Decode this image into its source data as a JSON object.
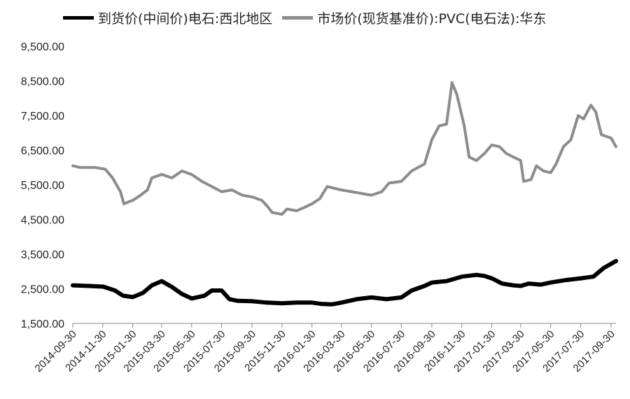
{
  "chart_data": {
    "type": "line",
    "title": "",
    "xlabel": "",
    "ylabel": "",
    "ylim": [
      1500,
      9500
    ],
    "grid": false,
    "legend_position": "top",
    "y_ticks": [
      "1,500.00",
      "2,500.00",
      "3,500.00",
      "4,500.00",
      "5,500.00",
      "6,500.00",
      "7,500.00",
      "8,500.00",
      "9,500.00"
    ],
    "x_ticks": [
      "2014-09-30",
      "2014-11-30",
      "2015-01-30",
      "2015-03-30",
      "2015-05-30",
      "2015-07-30",
      "2015-09-30",
      "2015-11-30",
      "2016-01-30",
      "2016-03-30",
      "2016-05-30",
      "2016-07-30",
      "2016-09-30",
      "2016-11-30",
      "2017-01-30",
      "2017-03-30",
      "2017-05-30",
      "2017-07-30",
      "2017-09-30"
    ],
    "series": [
      {
        "name": "到货价(中间价)电石:西北地区",
        "color": "#000000",
        "points": [
          [
            "2014-09-30",
            2600
          ],
          [
            "2014-11-01",
            2580
          ],
          [
            "2014-12-01",
            2560
          ],
          [
            "2014-12-25",
            2450
          ],
          [
            "2015-01-10",
            2300
          ],
          [
            "2015-01-30",
            2260
          ],
          [
            "2015-02-20",
            2380
          ],
          [
            "2015-03-10",
            2600
          ],
          [
            "2015-03-30",
            2720
          ],
          [
            "2015-04-20",
            2550
          ],
          [
            "2015-05-10",
            2350
          ],
          [
            "2015-05-30",
            2220
          ],
          [
            "2015-06-25",
            2300
          ],
          [
            "2015-07-10",
            2450
          ],
          [
            "2015-07-30",
            2450
          ],
          [
            "2015-08-15",
            2200
          ],
          [
            "2015-09-01",
            2150
          ],
          [
            "2015-09-30",
            2140
          ],
          [
            "2015-10-30",
            2100
          ],
          [
            "2015-11-30",
            2080
          ],
          [
            "2015-12-30",
            2100
          ],
          [
            "2016-01-30",
            2100
          ],
          [
            "2016-02-20",
            2060
          ],
          [
            "2016-03-10",
            2050
          ],
          [
            "2016-03-30",
            2100
          ],
          [
            "2016-04-30",
            2200
          ],
          [
            "2016-05-30",
            2250
          ],
          [
            "2016-06-30",
            2200
          ],
          [
            "2016-07-30",
            2250
          ],
          [
            "2016-08-20",
            2450
          ],
          [
            "2016-09-15",
            2580
          ],
          [
            "2016-09-30",
            2680
          ],
          [
            "2016-10-30",
            2720
          ],
          [
            "2016-11-30",
            2850
          ],
          [
            "2016-12-30",
            2900
          ],
          [
            "2017-01-15",
            2870
          ],
          [
            "2017-01-30",
            2800
          ],
          [
            "2017-02-20",
            2650
          ],
          [
            "2017-03-15",
            2600
          ],
          [
            "2017-03-30",
            2580
          ],
          [
            "2017-04-15",
            2650
          ],
          [
            "2017-05-10",
            2620
          ],
          [
            "2017-05-30",
            2680
          ],
          [
            "2017-06-30",
            2750
          ],
          [
            "2017-07-30",
            2800
          ],
          [
            "2017-08-25",
            2850
          ],
          [
            "2017-09-15",
            3100
          ],
          [
            "2017-10-10",
            3300
          ]
        ]
      },
      {
        "name": "市场价(现货基准价):PVC(电石法):华东",
        "color": "#8c8c8c",
        "points": [
          [
            "2014-09-30",
            6050
          ],
          [
            "2014-10-15",
            6000
          ],
          [
            "2014-11-15",
            6000
          ],
          [
            "2014-12-05",
            5950
          ],
          [
            "2014-12-20",
            5700
          ],
          [
            "2015-01-05",
            5300
          ],
          [
            "2015-01-12",
            4950
          ],
          [
            "2015-01-20",
            5000
          ],
          [
            "2015-01-30",
            5050
          ],
          [
            "2015-02-15",
            5200
          ],
          [
            "2015-03-01",
            5350
          ],
          [
            "2015-03-10",
            5700
          ],
          [
            "2015-03-30",
            5800
          ],
          [
            "2015-04-20",
            5700
          ],
          [
            "2015-05-10",
            5900
          ],
          [
            "2015-05-30",
            5800
          ],
          [
            "2015-06-20",
            5600
          ],
          [
            "2015-07-10",
            5450
          ],
          [
            "2015-07-30",
            5300
          ],
          [
            "2015-08-20",
            5350
          ],
          [
            "2015-09-10",
            5200
          ],
          [
            "2015-09-30",
            5150
          ],
          [
            "2015-10-20",
            5050
          ],
          [
            "2015-10-30",
            4900
          ],
          [
            "2015-11-10",
            4700
          ],
          [
            "2015-11-30",
            4650
          ],
          [
            "2015-12-10",
            4800
          ],
          [
            "2015-12-30",
            4750
          ],
          [
            "2016-01-15",
            4850
          ],
          [
            "2016-01-30",
            4950
          ],
          [
            "2016-02-15",
            5100
          ],
          [
            "2016-03-01",
            5450
          ],
          [
            "2016-03-30",
            5350
          ],
          [
            "2016-04-20",
            5300
          ],
          [
            "2016-05-10",
            5250
          ],
          [
            "2016-05-30",
            5200
          ],
          [
            "2016-06-20",
            5300
          ],
          [
            "2016-07-05",
            5550
          ],
          [
            "2016-07-30",
            5600
          ],
          [
            "2016-08-20",
            5900
          ],
          [
            "2016-09-15",
            6100
          ],
          [
            "2016-09-30",
            6800
          ],
          [
            "2016-10-15",
            7200
          ],
          [
            "2016-10-30",
            7250
          ],
          [
            "2016-11-10",
            8450
          ],
          [
            "2016-11-20",
            8100
          ],
          [
            "2016-12-05",
            7200
          ],
          [
            "2016-12-15",
            6300
          ],
          [
            "2016-12-30",
            6200
          ],
          [
            "2017-01-15",
            6400
          ],
          [
            "2017-01-30",
            6650
          ],
          [
            "2017-02-15",
            6600
          ],
          [
            "2017-03-01",
            6400
          ],
          [
            "2017-03-15",
            6300
          ],
          [
            "2017-03-30",
            6200
          ],
          [
            "2017-04-05",
            5600
          ],
          [
            "2017-04-20",
            5650
          ],
          [
            "2017-05-01",
            6050
          ],
          [
            "2017-05-15",
            5900
          ],
          [
            "2017-05-30",
            5850
          ],
          [
            "2017-06-10",
            6100
          ],
          [
            "2017-06-25",
            6600
          ],
          [
            "2017-07-10",
            6800
          ],
          [
            "2017-07-25",
            7500
          ],
          [
            "2017-08-05",
            7400
          ],
          [
            "2017-08-20",
            7800
          ],
          [
            "2017-08-30",
            7600
          ],
          [
            "2017-09-10",
            6950
          ],
          [
            "2017-09-30",
            6850
          ],
          [
            "2017-10-10",
            6600
          ]
        ]
      }
    ]
  }
}
